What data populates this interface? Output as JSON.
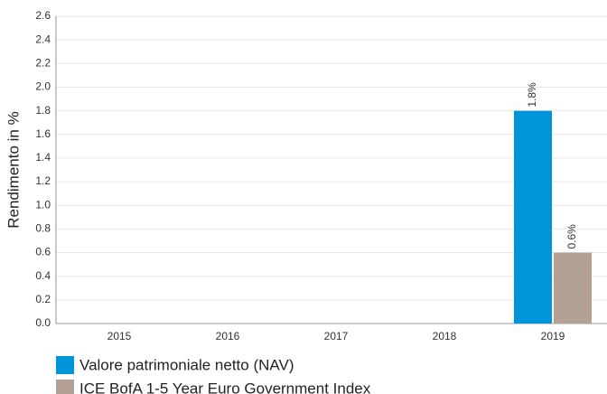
{
  "chart_data": {
    "type": "bar",
    "y_label": "Rendimento in %",
    "categories": [
      "2015",
      "2016",
      "2017",
      "2018",
      "2019"
    ],
    "series": [
      {
        "name": "Valore patrimoniale netto (NAV)",
        "color": "#0095d9",
        "values": [
          null,
          null,
          null,
          null,
          1.8
        ],
        "value_labels": [
          null,
          null,
          null,
          null,
          "1.8%"
        ]
      },
      {
        "name": "ICE BofA 1-5 Year Euro Government Index",
        "color": "#b3a293",
        "values": [
          null,
          null,
          null,
          null,
          0.6
        ],
        "value_labels": [
          null,
          null,
          null,
          null,
          "0.6%"
        ]
      }
    ],
    "ylim": [
      0,
      2.6
    ],
    "yticks": [
      {
        "value": 0,
        "label": "0.0"
      },
      0.2,
      0.4,
      0.6,
      0.8,
      {
        "value": 1,
        "label": "1.0"
      },
      1.2,
      1.4,
      1.6,
      1.8,
      {
        "value": 2,
        "label": "2.0"
      },
      2.2,
      2.4,
      2.6
    ],
    "grid": true,
    "legend": "bottom"
  }
}
